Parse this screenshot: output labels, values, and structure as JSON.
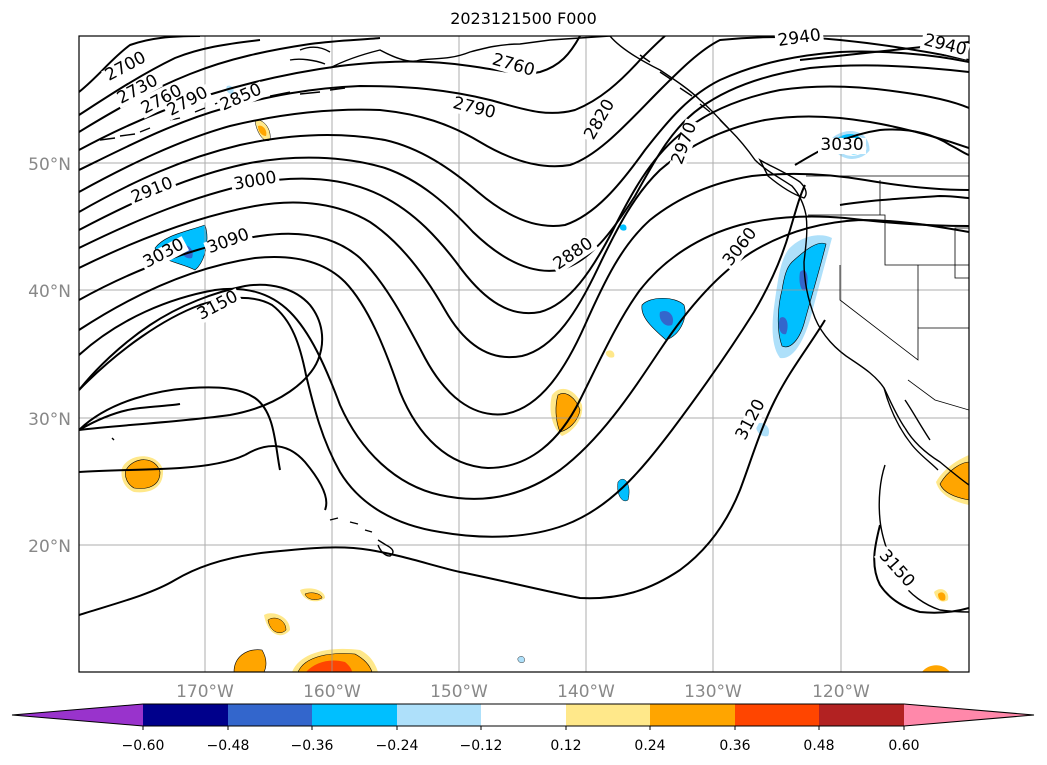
{
  "title": "2023121500 F000",
  "lat_labels": [
    "50°N",
    "40°N",
    "30°N",
    "20°N"
  ],
  "lon_labels": [
    "170°W",
    "160°W",
    "150°W",
    "140°W",
    "130°W",
    "120°W"
  ],
  "contour_labels": [
    "2700",
    "2730",
    "2760",
    "2790",
    "2850",
    "2760",
    "2790",
    "2820",
    "2970",
    "2940",
    "2940",
    "3030",
    "2910",
    "3000",
    "3030",
    "3090",
    "3150",
    "2880",
    "3060",
    "3120",
    "3150"
  ],
  "colorbar": {
    "ticks": [
      "−0.60",
      "−0.48",
      "−0.36",
      "−0.24",
      "−0.12",
      "0.12",
      "0.24",
      "0.36",
      "0.48",
      "0.60"
    ],
    "colors": [
      "#9933cc",
      "#00008b",
      "#3366cc",
      "#00bfff",
      "#aee0fa",
      "#ffffff",
      "#ffe88a",
      "#ffa500",
      "#ff4500",
      "#b22222",
      "#ff88aa"
    ]
  },
  "fill_colors": {
    "neg_light": "#aee0fa",
    "neg_mid": "#00bfff",
    "neg_dark": "#3366cc",
    "pos_light": "#ffe88a",
    "pos_mid": "#ffa500",
    "pos_dark": "#ff4500"
  }
}
